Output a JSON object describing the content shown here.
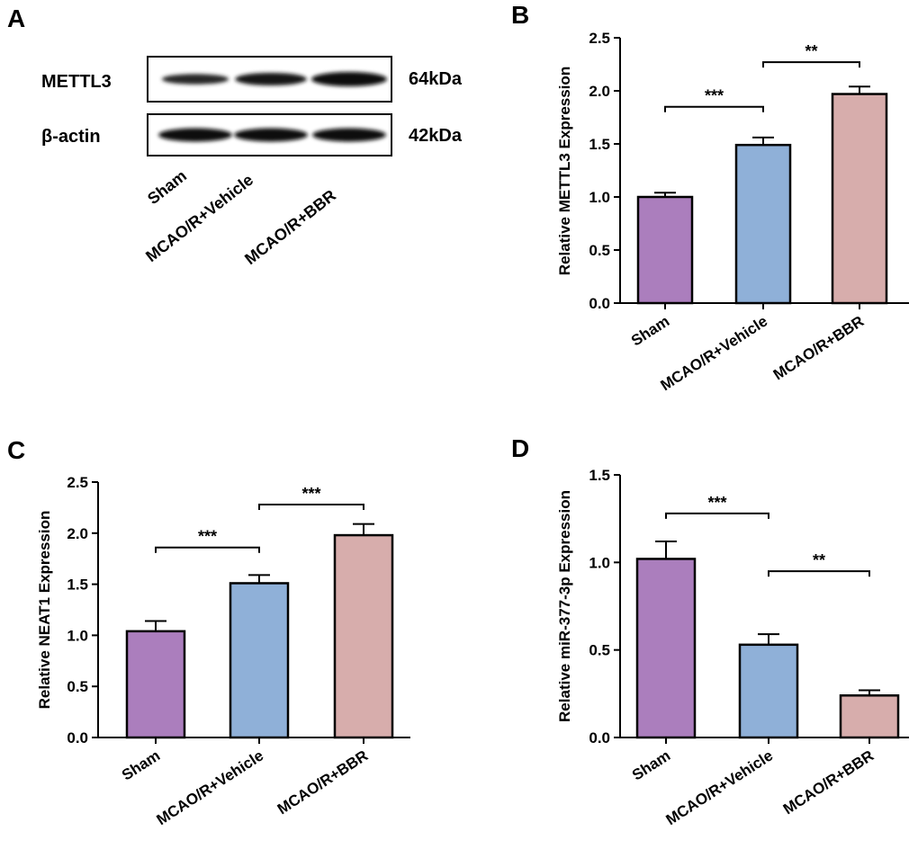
{
  "panels": {
    "A": "A",
    "B": "B",
    "C": "C",
    "D": "D"
  },
  "blot": {
    "rows": [
      {
        "name": "METTL3",
        "size": "64kDa",
        "intensities": [
          0.55,
          0.8,
          1.0
        ]
      },
      {
        "name": "β-actin",
        "size": "42kDa",
        "intensities": [
          0.9,
          0.9,
          0.9
        ]
      }
    ],
    "lanes": [
      "Sham",
      "MCAO/R+Vehicle",
      "MCAO/R+BBR"
    ]
  },
  "colors": {
    "sham": "#ab7ebd",
    "vehicle": "#8fb0d8",
    "bbr": "#d7adac"
  },
  "chart_data": [
    {
      "type": "bar",
      "panel": "B",
      "categories": [
        "Sham",
        "MCAO/R+Vehicle",
        "MCAO/R+BBR"
      ],
      "values": [
        1.0,
        1.49,
        1.97
      ],
      "errors": [
        0.04,
        0.07,
        0.07
      ],
      "ylabel": "Relative METTL3 Expression",
      "ylim": [
        0,
        2.5
      ],
      "yticks": [
        "0.0",
        "0.5",
        "1.0",
        "1.5",
        "2.0",
        "2.5"
      ],
      "significance": [
        {
          "from": 0,
          "to": 1,
          "label": "***",
          "y": 1.85
        },
        {
          "from": 1,
          "to": 2,
          "label": "**",
          "y": 2.27
        }
      ]
    },
    {
      "type": "bar",
      "panel": "C",
      "categories": [
        "Sham",
        "MCAO/R+Vehicle",
        "MCAO/R+BBR"
      ],
      "values": [
        1.04,
        1.51,
        1.98
      ],
      "errors": [
        0.1,
        0.08,
        0.11
      ],
      "ylabel": "Relative NEAT1 Expression",
      "ylim": [
        0,
        2.5
      ],
      "yticks": [
        "0.0",
        "0.5",
        "1.0",
        "1.5",
        "2.0",
        "2.5"
      ],
      "significance": [
        {
          "from": 0,
          "to": 1,
          "label": "***",
          "y": 1.86
        },
        {
          "from": 1,
          "to": 2,
          "label": "***",
          "y": 2.28
        }
      ]
    },
    {
      "type": "bar",
      "panel": "D",
      "categories": [
        "Sham",
        "MCAO/R+Vehicle",
        "MCAO/R+BBR"
      ],
      "values": [
        1.02,
        0.53,
        0.24
      ],
      "errors": [
        0.1,
        0.06,
        0.03
      ],
      "ylabel": "Relative miR-377-3p Expression",
      "ylim": [
        0,
        1.5
      ],
      "yticks": [
        "0.0",
        "0.5",
        "1.0",
        "1.5"
      ],
      "significance": [
        {
          "from": 0,
          "to": 1,
          "label": "***",
          "y": 1.28
        },
        {
          "from": 1,
          "to": 2,
          "label": "**",
          "y": 0.95
        }
      ]
    }
  ]
}
